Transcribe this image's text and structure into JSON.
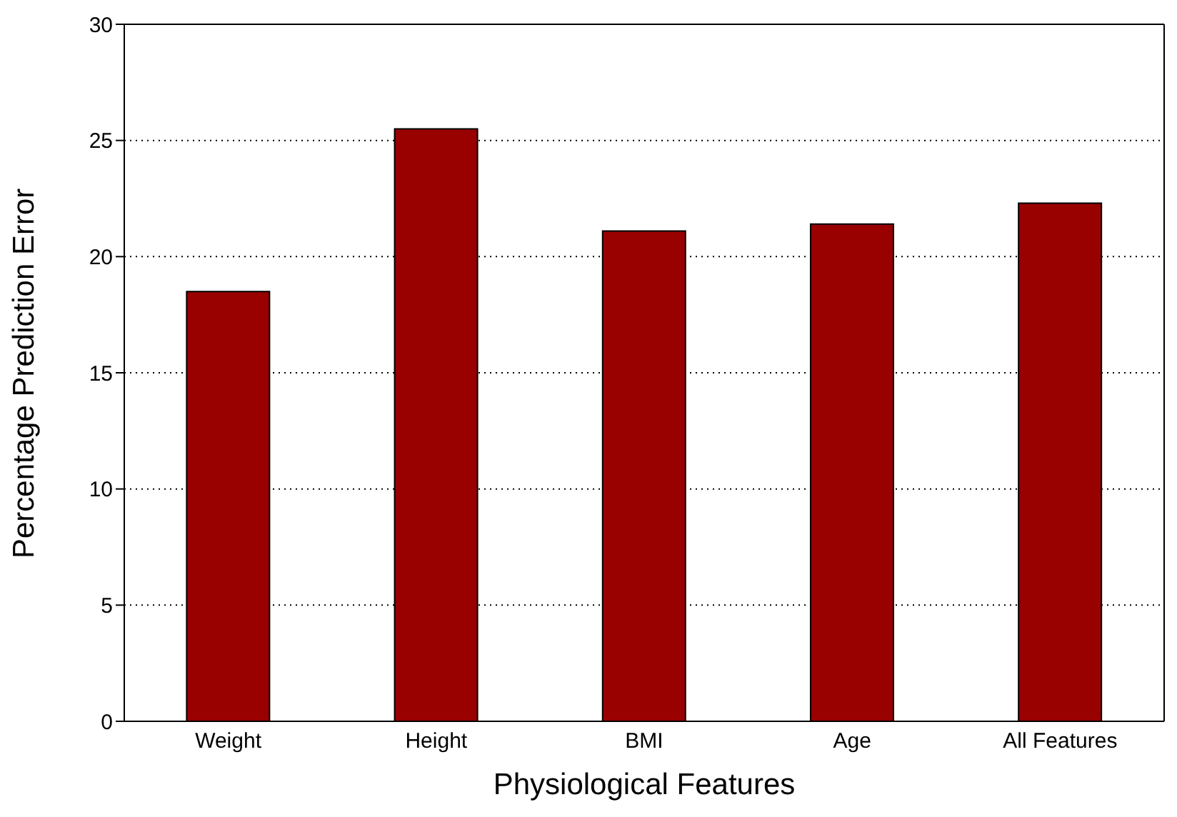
{
  "chart_data": {
    "type": "bar",
    "xlabel": "Physiological Features",
    "ylabel": "Percentage Prediction Error",
    "categories": [
      "Weight",
      "Height",
      "BMI",
      "Age",
      "All Features"
    ],
    "values": [
      18.5,
      25.5,
      21.1,
      21.4,
      22.3
    ],
    "color": "#990000",
    "ylim": [
      0,
      30
    ],
    "yticks": [
      0,
      5,
      10,
      15,
      20,
      25,
      30
    ],
    "grid": "y"
  }
}
